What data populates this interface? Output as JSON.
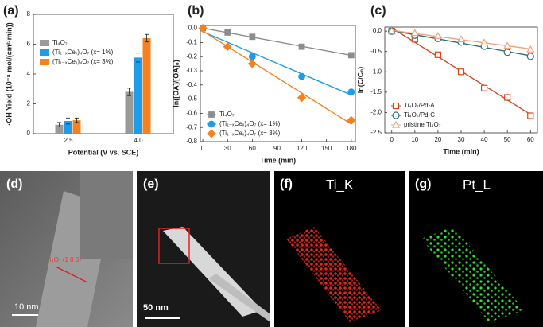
{
  "chart_data": [
    {
      "type": "bar",
      "panel_label": "(a)",
      "x_label": "Potential (V vs. SCE)",
      "y_label": "·OH Yield (10⁻⁸ mol/(cm²·min))",
      "categories": [
        "2.5",
        "4.0"
      ],
      "series": [
        {
          "name": "Ti₄O₇",
          "color": "#9a9a9a",
          "values": [
            0.6,
            2.8
          ],
          "errors": [
            0.15,
            0.25
          ]
        },
        {
          "name": "(Ti₁₋ₓCeₓ)₄O₇ (x= 1%)",
          "color": "#1e9be9",
          "values": [
            0.85,
            5.1
          ],
          "errors": [
            0.2,
            0.3
          ]
        },
        {
          "name": "(Ti₁₋ₓCeₓ)₄O₇ (x= 3%)",
          "color": "#f5821f",
          "values": [
            0.9,
            6.4
          ],
          "errors": [
            0.15,
            0.25
          ]
        }
      ],
      "ylim": [
        0,
        8
      ],
      "yticks": [
        0,
        2,
        4,
        6,
        8
      ],
      "legend": "upper-left"
    },
    {
      "type": "scatter",
      "panel_label": "(b)",
      "x_label": "Time (min)",
      "y_label": "ln([OA]/[OA]₀)",
      "x": [
        0,
        30,
        60,
        120,
        180
      ],
      "series": [
        {
          "name": "Ti₄O₇",
          "color": "#8c8c8c",
          "marker": "square",
          "filled": true,
          "values": [
            0,
            -0.03,
            -0.06,
            -0.13,
            -0.19
          ]
        },
        {
          "name": "(Ti₁₋ₓCeₓ)₄O₇ (x= 1%)",
          "color": "#1e9be9",
          "marker": "circle",
          "filled": true,
          "values": [
            0,
            null,
            -0.2,
            -0.34,
            -0.45
          ]
        },
        {
          "name": "(Ti₁₋ₓCeₓ)₄O₇ (x= 3%)",
          "color": "#f5821f",
          "marker": "diamond",
          "filled": true,
          "values": [
            0,
            -0.13,
            -0.25,
            -0.49,
            -0.65
          ]
        }
      ],
      "xlim": [
        -3,
        185
      ],
      "xticks": [
        0,
        30,
        60,
        90,
        120,
        150,
        180
      ],
      "ylim": [
        -0.8,
        0.02
      ],
      "yticks": [
        {
          "value": 0,
          "label": "0.0"
        },
        -0.1,
        -0.2,
        -0.3,
        -0.4,
        -0.5,
        -0.6,
        -0.7,
        -0.8
      ],
      "legend": "lower-left"
    },
    {
      "type": "scatter",
      "panel_label": "(c)",
      "x_label": "Time (min)",
      "y_label": "ln(C/C₀)",
      "x": [
        0,
        10,
        20,
        30,
        40,
        50,
        60
      ],
      "series": [
        {
          "name": "Ti₄O₇/Pd-A",
          "color": "#d9441c",
          "marker": "square",
          "filled": false,
          "values": [
            0,
            -0.2,
            -0.58,
            -1.0,
            -1.4,
            -1.63,
            -2.08
          ]
        },
        {
          "name": "Ti₄O₇/Pd-C",
          "color": "#2f6f73",
          "marker": "circle",
          "filled": false,
          "values": [
            0,
            -0.1,
            -0.18,
            -0.27,
            -0.37,
            -0.52,
            -0.62
          ]
        },
        {
          "name": "pristine Ti₄O₇",
          "color": "#f2a27a",
          "marker": "triangle",
          "filled": false,
          "values": [
            0,
            -0.05,
            -0.12,
            -0.2,
            -0.28,
            -0.36,
            -0.45
          ]
        }
      ],
      "xlim": [
        -3,
        63
      ],
      "xticks": [
        0,
        10,
        20,
        30,
        40,
        50,
        60
      ],
      "ylim": [
        -2.5,
        0.1
      ],
      "yticks": [
        {
          "value": -2.5,
          "label": "-2.5"
        },
        {
          "value": -2,
          "label": "-2.0"
        },
        -1.5,
        {
          "value": -1,
          "label": "-1.0"
        },
        -0.5,
        {
          "value": 0,
          "label": "0.0"
        }
      ],
      "legend": "lower-left"
    }
  ],
  "panels": [
    {
      "label": "(d)",
      "annotation": "Ti₄O₇ (1 0 5)",
      "scale_bar": "10 nm"
    },
    {
      "label": "(e)",
      "scale_bar": "50 nm"
    },
    {
      "label": "(f)",
      "title": "Ti_K"
    },
    {
      "label": "(g)",
      "title": "Pt_L"
    }
  ]
}
